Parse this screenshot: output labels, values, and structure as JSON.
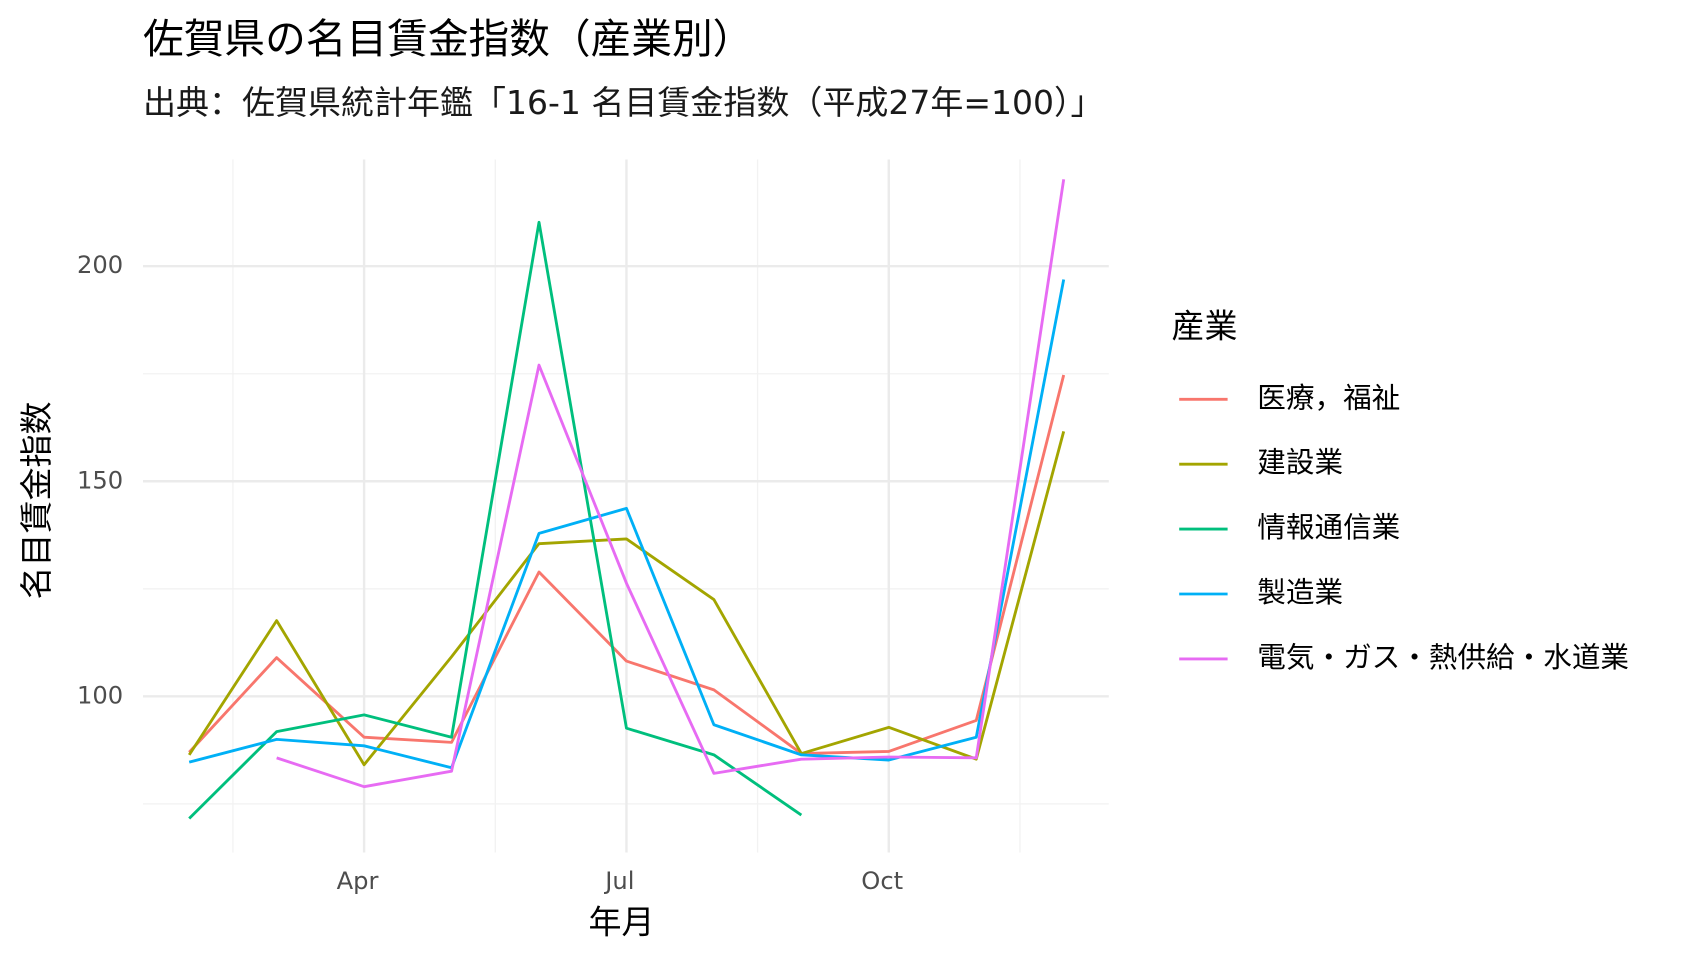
{
  "chart_data": {
    "type": "line",
    "title": "佐賀県の名目賃金指数（産業別）",
    "subtitle": "出典：佐賀県統計年鑑「16-1 名目賃金指数（平成27年=100）」",
    "x_label": "年月",
    "y_label": "名目賃金指数",
    "legend_title": "産業",
    "categories": [
      null,
      null,
      "Apr",
      null,
      null,
      "Jul",
      null,
      null,
      "Oct",
      null,
      null
    ],
    "ylim": [
      63.7,
      224.8
    ],
    "yticks": [
      100,
      150,
      200
    ],
    "grid": true,
    "legend": "right",
    "series": [
      {
        "name": "医療，福祉",
        "color": "#F8766D",
        "values": [
          87.0,
          109.0,
          90.5,
          89.3,
          128.9,
          108.2,
          101.5,
          86.7,
          87.2,
          94.4,
          174.7
        ]
      },
      {
        "name": "建設業",
        "color": "#A3A500",
        "values": [
          86.4,
          117.6,
          84.1,
          109.2,
          135.5,
          136.6,
          122.5,
          86.7,
          92.8,
          85.4,
          161.6
        ]
      },
      {
        "name": "情報通信業",
        "color": "#00BF7D",
        "values": [
          71.6,
          91.8,
          95.7,
          90.5,
          210.2,
          92.6,
          86.4,
          72.4,
          null,
          null,
          null
        ]
      },
      {
        "name": "製造業",
        "color": "#00B0F6",
        "values": [
          84.7,
          90.0,
          88.5,
          83.4,
          137.9,
          143.7,
          93.4,
          86.4,
          85.2,
          90.5,
          196.9
        ]
      },
      {
        "name": "電気・ガス・熱供給・水道業",
        "color": "#E76BF3",
        "values": [
          null,
          85.7,
          79.0,
          82.6,
          177.0,
          126.3,
          82.1,
          85.4,
          85.9,
          85.7,
          220.2
        ]
      }
    ]
  }
}
